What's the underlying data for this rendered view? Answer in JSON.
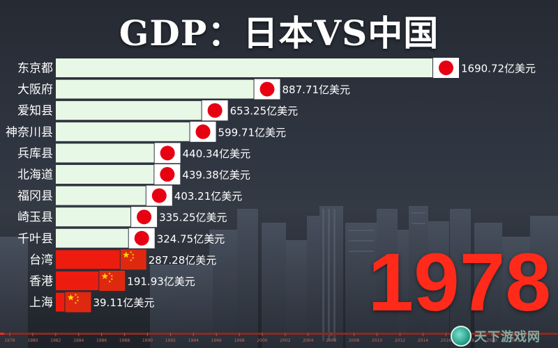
{
  "title": "GDP：日本VS中国",
  "year": "1978",
  "watermark": "天下游戏网",
  "colors": {
    "bar_japan": "#e8f8e6",
    "bar_china": "#ee1c0f",
    "label_text": "#ffffff",
    "year_text": "#ff2a1a",
    "flag_japan_disc": "#e60012",
    "flag_china_star": "#ffde00"
  },
  "chart_data": {
    "type": "bar",
    "orientation": "horizontal",
    "unit": "亿美元",
    "categories": [
      "东京都",
      "大阪府",
      "爱知县",
      "神奈川县",
      "兵库县",
      "北海道",
      "福冈县",
      "崎玉县",
      "千叶县",
      "台湾",
      "香港",
      "上海"
    ],
    "values": [
      1690.72,
      887.71,
      653.25,
      599.71,
      440.34,
      439.38,
      403.21,
      335.25,
      324.75,
      287.28,
      191.93,
      39.11
    ],
    "value_labels": [
      "1690.72亿美元",
      "887.71亿美元",
      "653.25亿美元",
      "599.71亿美元",
      "440.34亿美元",
      "439.38亿美元",
      "403.21亿美元",
      "335.25亿美元",
      "324.75亿美元",
      "287.28亿美元",
      "191.93亿美元",
      "39.11亿美元"
    ],
    "country": [
      "japan",
      "japan",
      "japan",
      "japan",
      "japan",
      "japan",
      "japan",
      "japan",
      "japan",
      "china",
      "china",
      "china"
    ],
    "timeline_years": [
      "1978",
      "1980",
      "1982",
      "1984",
      "1986",
      "1988",
      "1990",
      "1992",
      "1994",
      "1996",
      "1998",
      "2000",
      "2002",
      "2004",
      "2006",
      "2008",
      "2010",
      "2012",
      "2014",
      "2016",
      "2018",
      "2020",
      "2022"
    ]
  }
}
